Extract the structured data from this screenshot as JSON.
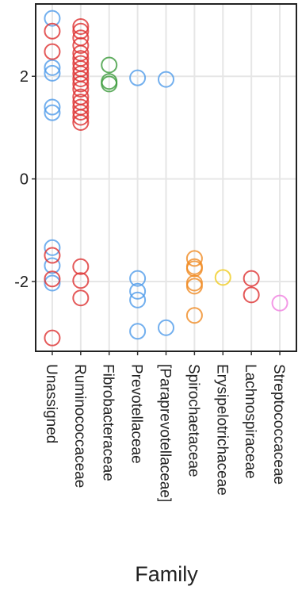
{
  "chart_data": {
    "type": "scatter",
    "x_label": "Family",
    "categories": [
      "Unassigned",
      "Ruminococcaceae",
      "Fibrobacteraceae",
      "Prevotellaceae",
      "[Paraprevotellaceae]",
      "Spirochaetaceae",
      "Erysipelotrichaceae",
      "Lachnospiraceae",
      "Streptococcaceae"
    ],
    "ylim": [
      -3.36,
      3.41
    ],
    "yticks": [
      -2,
      0,
      2
    ],
    "grid": true,
    "series": [
      {
        "color": "#4f9bea",
        "x": [
          "Unassigned",
          "Unassigned",
          "Unassigned",
          "Unassigned",
          "Unassigned",
          "Unassigned",
          "Unassigned",
          "Unassigned",
          "Prevotellaceae",
          "Prevotellaceae",
          "Prevotellaceae",
          "Prevotellaceae",
          "Prevotellaceae",
          "[Paraprevotellaceae]",
          "[Paraprevotellaceae]"
        ],
        "values": [
          3.13,
          2.17,
          2.06,
          1.4,
          1.29,
          -1.34,
          -1.69,
          -2.03,
          1.97,
          -1.94,
          -2.19,
          -2.36,
          -2.97,
          1.94,
          -2.9
        ]
      },
      {
        "color": "#dd3030",
        "x": [
          "Unassigned",
          "Unassigned",
          "Unassigned",
          "Unassigned",
          "Unassigned",
          "Ruminococcaceae",
          "Ruminococcaceae",
          "Ruminococcaceae",
          "Ruminococcaceae",
          "Ruminococcaceae",
          "Ruminococcaceae",
          "Ruminococcaceae",
          "Ruminococcaceae",
          "Ruminococcaceae",
          "Ruminococcaceae",
          "Ruminococcaceae",
          "Ruminococcaceae",
          "Ruminococcaceae",
          "Ruminococcaceae",
          "Ruminococcaceae",
          "Ruminococcaceae",
          "Ruminococcaceae",
          "Ruminococcaceae",
          "Ruminococcaceae",
          "Ruminococcaceae",
          "Ruminococcaceae",
          "Lachnospiraceae",
          "Lachnospiraceae"
        ],
        "values": [
          2.88,
          2.48,
          -1.49,
          -1.95,
          -3.1,
          2.97,
          2.88,
          2.75,
          2.6,
          2.45,
          2.35,
          2.25,
          2.15,
          2.05,
          1.95,
          1.85,
          1.75,
          1.6,
          1.5,
          1.4,
          1.3,
          1.2,
          1.1,
          -1.71,
          -1.98,
          -2.32,
          -1.94,
          -2.26
        ]
      },
      {
        "color": "#3a9a3a",
        "x": [
          "Fibrobacteraceae",
          "Fibrobacteraceae",
          "Fibrobacteraceae"
        ],
        "values": [
          2.22,
          1.9,
          1.85
        ]
      },
      {
        "color": "#f08a20",
        "x": [
          "Spirochaetaceae",
          "Spirochaetaceae",
          "Spirochaetaceae",
          "Spirochaetaceae",
          "Spirochaetaceae",
          "Spirochaetaceae"
        ],
        "values": [
          -1.55,
          -1.71,
          -1.75,
          -2.03,
          -2.09,
          -2.66
        ]
      },
      {
        "color": "#f0cc20",
        "x": [
          "Erysipelotrichaceae"
        ],
        "values": [
          -1.92
        ]
      },
      {
        "color": "#f07ee0",
        "x": [
          "Streptococcaceae"
        ],
        "values": [
          -2.42
        ]
      }
    ]
  }
}
